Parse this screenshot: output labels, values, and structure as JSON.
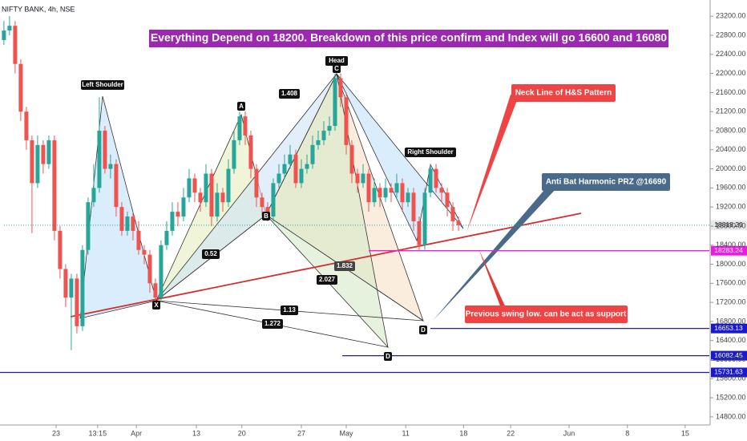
{
  "chart_data": {
    "type": "candlestick",
    "symbol": "NIFTY BANK, 4h, NSE",
    "title": "Everything Depend on 18200. Breakdown of this price confirm and Index will go 16600 and 16080",
    "up_color": "#26a69a",
    "down_color": "#ef5350",
    "open": [
      22700,
      22900,
      23000,
      22200,
      21200,
      20600,
      19700,
      20500,
      20100,
      20600,
      18700,
      17900,
      17300,
      17700,
      16700,
      18300,
      19300,
      19600,
      20800,
      20000,
      20100,
      19200,
      18700,
      19000,
      18700,
      18300,
      18200,
      17600,
      17300,
      18400,
      18700,
      19100,
      19000,
      19400,
      19800,
      19500,
      19300,
      19900,
      19000,
      19500,
      19300,
      20000,
      20600,
      21100,
      20700,
      20000,
      19400,
      19200,
      19000,
      19700,
      19900,
      20100,
      20300,
      19700,
      20000,
      20100,
      20500,
      20600,
      20800,
      20900,
      21900,
      21500,
      20500,
      19900,
      19700,
      19900,
      19300,
      19600,
      19400,
      19600,
      19500,
      19700,
      19300,
      19500,
      18900,
      18400,
      19500,
      20000,
      19600,
      19500,
      19200,
      18900
    ],
    "high": [
      23100,
      23200,
      23100,
      22300,
      21300,
      20700,
      20700,
      20600,
      20700,
      20700,
      18800,
      18000,
      17800,
      17800,
      18400,
      19400,
      20100,
      21500,
      20900,
      20300,
      20200,
      19300,
      19100,
      19100,
      18900,
      18400,
      18300,
      17700,
      18500,
      18900,
      19300,
      19300,
      19600,
      20000,
      19900,
      19600,
      20100,
      20000,
      19700,
      19600,
      20200,
      20800,
      21200,
      21200,
      20800,
      20100,
      19500,
      19300,
      19800,
      20100,
      20300,
      20500,
      20400,
      20200,
      20300,
      20700,
      20800,
      21000,
      21100,
      22000,
      22000,
      21600,
      20600,
      20000,
      20100,
      20000,
      19800,
      19700,
      19800,
      19700,
      19900,
      19800,
      19600,
      19600,
      19000,
      19600,
      20100,
      20100,
      19700,
      19600,
      19300,
      19000
    ],
    "low": [
      22600,
      22800,
      22000,
      21000,
      20400,
      18650,
      19600,
      19900,
      20000,
      18500,
      17700,
      17100,
      16200,
      16550,
      16600,
      18200,
      19200,
      19500,
      19900,
      19800,
      19000,
      18600,
      18600,
      18500,
      18200,
      18000,
      17400,
      17150,
      17200,
      18300,
      18600,
      18800,
      18900,
      19300,
      19300,
      19100,
      19200,
      18800,
      18900,
      19100,
      19200,
      19900,
      20500,
      20500,
      19800,
      19200,
      19000,
      18900,
      18900,
      19600,
      19800,
      20000,
      19600,
      19600,
      19900,
      20000,
      20400,
      20500,
      20700,
      20800,
      21300,
      20300,
      19700,
      19500,
      19600,
      19100,
      19200,
      19200,
      19300,
      19300,
      19400,
      19100,
      19200,
      18700,
      18300,
      18300,
      19400,
      19500,
      19300,
      19000,
      18700,
      18700
    ],
    "close": [
      22900,
      23000,
      22200,
      21200,
      20600,
      19700,
      20500,
      20100,
      20600,
      18700,
      17900,
      17300,
      17700,
      16700,
      18300,
      19300,
      19600,
      20800,
      20000,
      20100,
      19200,
      18700,
      19000,
      18700,
      18300,
      18200,
      17600,
      17300,
      18400,
      18700,
      19100,
      19000,
      19400,
      19800,
      19500,
      19300,
      19900,
      19000,
      19500,
      19300,
      20000,
      20600,
      21100,
      20700,
      20000,
      19400,
      19200,
      19000,
      19700,
      19900,
      20100,
      20300,
      19700,
      20000,
      20100,
      20500,
      20600,
      20800,
      20900,
      21900,
      21500,
      20500,
      19900,
      19700,
      19900,
      19300,
      19600,
      19400,
      19600,
      19500,
      19700,
      19300,
      19500,
      18900,
      18400,
      19500,
      20000,
      19600,
      19500,
      19200,
      18900,
      18818.2
    ],
    "xlim": [
      -0.7,
      125.7
    ],
    "xticks": [
      {
        "value": 9.3,
        "label": "23"
      },
      {
        "value": 16.7,
        "label": "13:15"
      },
      {
        "value": 23.6,
        "label": "Apr"
      },
      {
        "value": 34.3,
        "label": "13"
      },
      {
        "value": 42.4,
        "label": "20"
      },
      {
        "value": 53,
        "label": "27"
      },
      {
        "value": 61,
        "label": "May"
      },
      {
        "value": 71.6,
        "label": "11"
      },
      {
        "value": 81.9,
        "label": "18"
      },
      {
        "value": 90.3,
        "label": "22"
      },
      {
        "value": 100.7,
        "label": "Jun"
      },
      {
        "value": 111.1,
        "label": "8"
      },
      {
        "value": 121.4,
        "label": "15"
      }
    ],
    "ylim": [
      14630,
      23540
    ],
    "yticks": [
      {
        "value": 14800,
        "label": "14800.00"
      },
      {
        "value": 15200,
        "label": "15200.00"
      },
      {
        "value": 15600,
        "label": "15600.00"
      },
      {
        "value": 16000,
        "label": "16000.00"
      },
      {
        "value": 16400,
        "label": "16400.00"
      },
      {
        "value": 16800,
        "label": "16800.00"
      },
      {
        "value": 17200,
        "label": "17200.00"
      },
      {
        "value": 17600,
        "label": "17600.00"
      },
      {
        "value": 18000,
        "label": "18000.00"
      },
      {
        "value": 18400,
        "label": "18400.00"
      },
      {
        "value": 18800,
        "label": "18800.00"
      },
      {
        "value": 19200,
        "label": "19200.00"
      },
      {
        "value": 19600,
        "label": "19600.00"
      },
      {
        "value": 20000,
        "label": "20000.00"
      },
      {
        "value": 20400,
        "label": "20400.00"
      },
      {
        "value": 20800,
        "label": "20800.00"
      },
      {
        "value": 21200,
        "label": "21200.00"
      },
      {
        "value": 21600,
        "label": "21600.00"
      },
      {
        "value": 22000,
        "label": "22000.00"
      },
      {
        "value": 22400,
        "label": "22400.00"
      },
      {
        "value": 22800,
        "label": "22800.00"
      },
      {
        "value": 23200,
        "label": "23200.00"
      }
    ],
    "grid": false,
    "price_lines": [
      {
        "value": 18818.2,
        "label": "18818.20",
        "color": "#26a69a",
        "start": 0
      },
      {
        "value": 18283.24,
        "label": "18283.24",
        "color": "#e91ee0",
        "start": 65
      },
      {
        "value": 16653.13,
        "label": "16653.13",
        "color": "#1a1acc",
        "start": 76
      },
      {
        "value": 16082.45,
        "label": "16082.45",
        "color": "#1a1acc",
        "start": 60.3
      },
      {
        "value": 15731.63,
        "label": "15731.63",
        "color": "#1a1acc",
        "start": -0.7
      }
    ],
    "annotations": {
      "left_shoulder": "Left Shoulder",
      "head": "Head",
      "right_shoulder": "Right Shoulder",
      "a": "A",
      "b": "B",
      "c": "C",
      "x": "X",
      "d1": "D",
      "d2": "D",
      "r1": "1.408",
      "r2": "0.52",
      "r3": "1.832",
      "r4": "2.027",
      "r5": "1.13",
      "r6": "1.272",
      "neck": "Neck Line of H&S Pattern",
      "prz": "Anti Bat Harmonic PRZ @16690",
      "support": "Previous swing low. can be act as support"
    }
  }
}
